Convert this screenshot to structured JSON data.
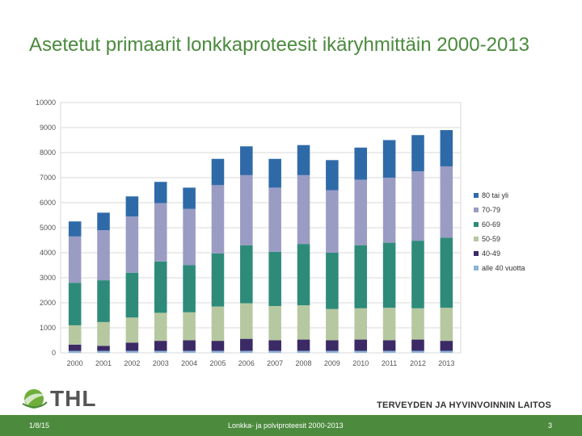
{
  "slide": {
    "title": "Asetetut primaarit lonkkaproteesit ikäryhmittäin 2000-2013",
    "logo_text": "THL",
    "organization": "TERVEYDEN JA HYVINVOINNIN LAITOS",
    "footer_date": "1/8/15",
    "footer_center": "Lonkka- ja polviproteesit 2000-2013",
    "footer_page": "3"
  },
  "colors": {
    "title": "#4a8a3c",
    "footer": "#4c8a3e"
  },
  "chart_data": {
    "type": "bar",
    "stacked": true,
    "title": "",
    "xlabel": "",
    "ylabel": "",
    "ylim": [
      0,
      10000
    ],
    "yticks": [
      0,
      1000,
      2000,
      3000,
      4000,
      5000,
      6000,
      7000,
      8000,
      9000,
      10000
    ],
    "grid": true,
    "legend_position": "right",
    "categories": [
      "2000",
      "2001",
      "2002",
      "2003",
      "2004",
      "2005",
      "2006",
      "2007",
      "2008",
      "2009",
      "2010",
      "2011",
      "2012",
      "2013"
    ],
    "series": [
      {
        "name": "alle 40 vuotta",
        "color": "#8eb4d6",
        "values": [
          80,
          80,
          80,
          80,
          80,
          80,
          80,
          80,
          80,
          80,
          80,
          80,
          80,
          80
        ]
      },
      {
        "name": "40-49",
        "color": "#3b2a66",
        "values": [
          250,
          200,
          330,
          400,
          420,
          400,
          480,
          420,
          450,
          420,
          450,
          420,
          450,
          400
        ]
      },
      {
        "name": "50-59",
        "color": "#b6c8a0",
        "values": [
          770,
          950,
          1000,
          1120,
          1120,
          1370,
          1420,
          1370,
          1370,
          1250,
          1250,
          1300,
          1250,
          1320
        ]
      },
      {
        "name": "60-69",
        "color": "#2e8b7a",
        "values": [
          1700,
          1670,
          1790,
          2050,
          1880,
          2120,
          2320,
          2170,
          2450,
          2250,
          2520,
          2600,
          2700,
          2800
        ]
      },
      {
        "name": "70-79",
        "color": "#9a9cc4",
        "values": [
          1850,
          2000,
          2250,
          2330,
          2250,
          2730,
          2800,
          2560,
          2750,
          2500,
          2620,
          2600,
          2770,
          2850
        ]
      },
      {
        "name": "80 tai yli",
        "color": "#2f6aa8",
        "values": [
          600,
          700,
          800,
          850,
          850,
          1050,
          1150,
          1150,
          1200,
          1200,
          1280,
          1500,
          1450,
          1450
        ]
      }
    ]
  }
}
